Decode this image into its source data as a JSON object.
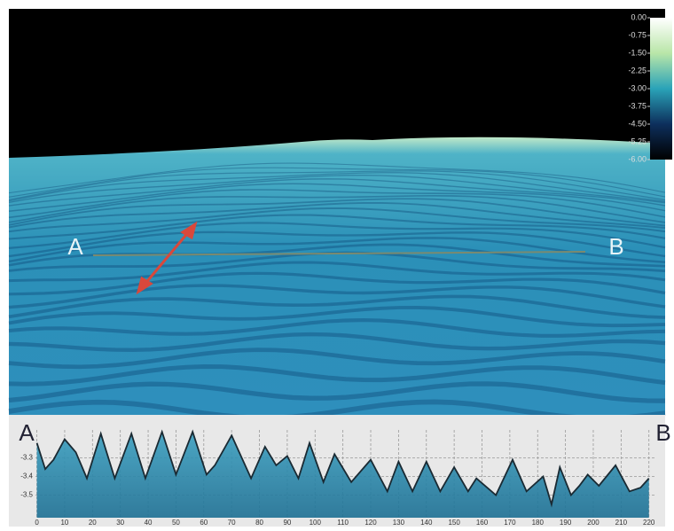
{
  "scene": {
    "labels": [
      "A",
      "B"
    ],
    "colorbar": {
      "lim": [
        -6,
        0
      ],
      "ticks": [
        {
          "value": 0,
          "label": "0.00"
        },
        {
          "value": -0.75,
          "label": "-0.75"
        },
        {
          "value": -1.5,
          "label": "-1.50"
        },
        {
          "value": -2.25,
          "label": "-2.25"
        },
        {
          "value": -3,
          "label": "-3.00"
        },
        {
          "value": -3.75,
          "label": "-3.75"
        },
        {
          "value": -4.5,
          "label": "-4.50"
        },
        {
          "value": -5.25,
          "label": "-5.25"
        },
        {
          "value": -6,
          "label": "-6.00"
        }
      ]
    }
  },
  "chart_data": {
    "type": "area",
    "start_label": "A",
    "end_label": "B",
    "color": "#2f8fb0",
    "line_color": "#1a2a33",
    "x": [
      0,
      3,
      6,
      10,
      14,
      18,
      23,
      28,
      34,
      39,
      45,
      50,
      56,
      61,
      64,
      70,
      77,
      82,
      86,
      90,
      94,
      98,
      103,
      107,
      113,
      120,
      126,
      130,
      135,
      140,
      145,
      150,
      155,
      158,
      165,
      171,
      176,
      182,
      185,
      188,
      192,
      195,
      198,
      202,
      208,
      213,
      217,
      220
    ],
    "values": [
      -3.22,
      -3.36,
      -3.31,
      -3.2,
      -3.27,
      -3.41,
      -3.17,
      -3.41,
      -3.17,
      -3.41,
      -3.16,
      -3.39,
      -3.16,
      -3.39,
      -3.34,
      -3.18,
      -3.41,
      -3.24,
      -3.34,
      -3.29,
      -3.41,
      -3.22,
      -3.43,
      -3.28,
      -3.43,
      -3.31,
      -3.48,
      -3.32,
      -3.48,
      -3.32,
      -3.48,
      -3.35,
      -3.48,
      -3.41,
      -3.5,
      -3.31,
      -3.48,
      -3.4,
      -3.55,
      -3.35,
      -3.5,
      -3.45,
      -3.39,
      -3.45,
      -3.34,
      -3.48,
      -3.46,
      -3.41
    ],
    "xlim": [
      -0.5,
      222
    ],
    "ylim": [
      -3.65,
      -3.15
    ],
    "xticks": [
      0,
      10,
      20,
      30,
      40,
      50,
      60,
      70,
      80,
      90,
      100,
      110,
      120,
      130,
      140,
      150,
      160,
      170,
      180,
      190,
      200,
      210,
      220
    ],
    "yticks": [
      -3.3,
      -3.4,
      -3.5
    ],
    "grid": true
  }
}
